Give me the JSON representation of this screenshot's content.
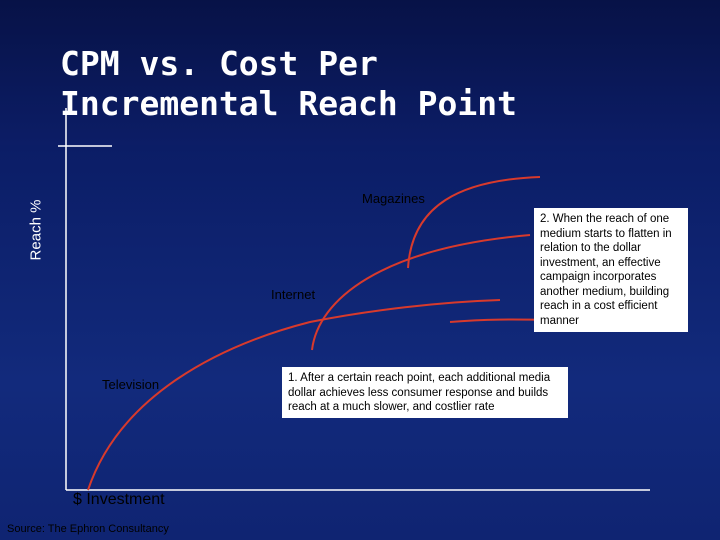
{
  "slide": {
    "title": "CPM vs. Cost Per\nIncremental Reach Point",
    "y_axis_label": "Reach %",
    "x_axis_label": "$ Investment",
    "source": "Source: The Ephron Consultancy"
  },
  "curves": [
    {
      "label": "Television"
    },
    {
      "label": "Internet"
    },
    {
      "label": "Magazines"
    }
  ],
  "notes": {
    "note1": "1.  After a certain reach point, each additional media dollar achieves less consumer response and builds reach at a much slower, and costlier rate",
    "note2": "2.  When the reach of one medium starts to flatten in relation to the dollar investment, an effective campaign incorporates another medium,  building reach in a cost efficient manner"
  },
  "colors": {
    "background": "#0a1a5e",
    "plot_area": "#122a7c",
    "curve": "#d83a2c",
    "axis": "#ffffff",
    "note_box": "#ffffff"
  }
}
